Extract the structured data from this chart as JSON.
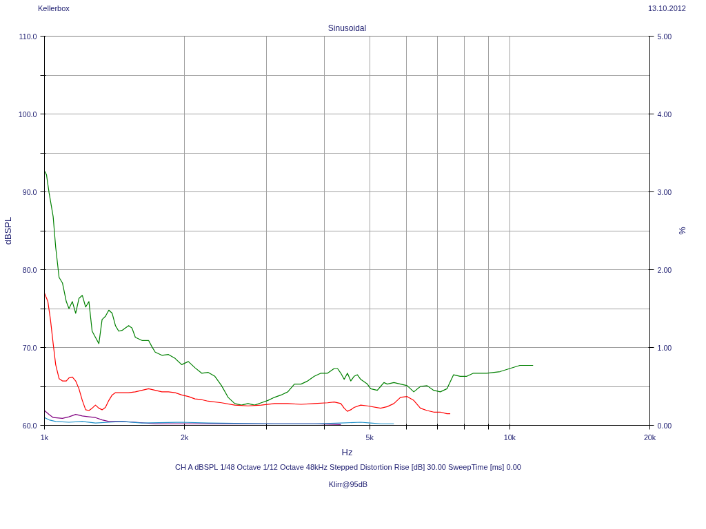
{
  "chart_data": {
    "type": "line",
    "title": "Sinusoidal",
    "xlabel": "Hz",
    "ylabel": "dBSPL",
    "y2label": "%",
    "annotations": [
      "Kellerbox",
      "13.10.2012",
      "CH A   dBSPL   1/48 Octave   1/12 Octave   48kHz   Stepped   Distortion Rise [dB] 30.00   SweepTime [ms] 0.00",
      "Klirr@95dB"
    ],
    "log": "x",
    "grid": true,
    "marker": "none",
    "line_style": "solid",
    "xlim": [
      1000,
      20000
    ],
    "xticks": [
      {
        "value": 1000,
        "label": "1k"
      },
      {
        "value": 2000,
        "label": "2k"
      },
      {
        "value": 3000,
        "label": null
      },
      {
        "value": 4000,
        "label": null
      },
      {
        "value": 5000,
        "label": "5k"
      },
      {
        "value": 6000,
        "label": null
      },
      {
        "value": 7000,
        "label": null
      },
      {
        "value": 8000,
        "label": null
      },
      {
        "value": 9000,
        "label": null
      },
      {
        "value": 10000,
        "label": "10k"
      },
      {
        "value": 20000,
        "label": "20k"
      }
    ],
    "ylim": [
      60,
      110
    ],
    "yticks": [
      {
        "value": 60,
        "label": "60.0"
      },
      {
        "value": 65,
        "label": null
      },
      {
        "value": 70,
        "label": "70.0"
      },
      {
        "value": 75,
        "label": null
      },
      {
        "value": 80,
        "label": "80.0"
      },
      {
        "value": 85,
        "label": null
      },
      {
        "value": 90,
        "label": "90.0"
      },
      {
        "value": 95,
        "label": null
      },
      {
        "value": 100,
        "label": "100.0"
      },
      {
        "value": 105,
        "label": null
      },
      {
        "value": 110,
        "label": "110.0"
      }
    ],
    "y2lim": [
      0,
      5
    ],
    "y2ticks": [
      {
        "value": 0,
        "label": "0.00"
      },
      {
        "value": 1,
        "label": "1.00"
      },
      {
        "value": 2,
        "label": "2.00"
      },
      {
        "value": 3,
        "label": "3.00"
      },
      {
        "value": 4,
        "label": "4.00"
      },
      {
        "value": 5,
        "label": "5.00"
      }
    ],
    "series": [
      {
        "color": "#008000",
        "axis": "y2",
        "x": [
          1000,
          1010,
          1023,
          1044,
          1057,
          1075,
          1093,
          1114,
          1129,
          1148,
          1167,
          1186,
          1206,
          1226,
          1246,
          1266,
          1287,
          1309,
          1330,
          1352,
          1375,
          1398,
          1421,
          1444,
          1468,
          1492,
          1517,
          1542,
          1568,
          1620,
          1674,
          1702,
          1730,
          1788,
          1847,
          1909,
          1972,
          2038,
          2106,
          2177,
          2249,
          2324,
          2402,
          2481,
          2564,
          2650,
          2738,
          2829,
          2924,
          3021,
          3122,
          3226,
          3334,
          3445,
          3560,
          3679,
          3801,
          3928,
          4059,
          4195,
          4264,
          4335,
          4407,
          4479,
          4553,
          4629,
          4705,
          4783,
          4943,
          5024,
          5192,
          5278,
          5365,
          5454,
          5636,
          5824,
          6018,
          6219,
          6427,
          6641,
          6863,
          7092,
          7328,
          7573,
          7825,
          8086,
          8356,
          8923,
          9526,
          10007,
          10513,
          11226
        ],
        "values": [
          3.27,
          3.22,
          2.99,
          2.68,
          2.29,
          1.9,
          1.83,
          1.59,
          1.5,
          1.59,
          1.44,
          1.63,
          1.67,
          1.52,
          1.59,
          1.21,
          1.13,
          1.05,
          1.36,
          1.4,
          1.48,
          1.44,
          1.28,
          1.21,
          1.22,
          1.25,
          1.28,
          1.25,
          1.13,
          1.09,
          1.09,
          1.01,
          0.94,
          0.9,
          0.91,
          0.86,
          0.78,
          0.82,
          0.74,
          0.67,
          0.68,
          0.63,
          0.51,
          0.36,
          0.28,
          0.26,
          0.28,
          0.26,
          0.29,
          0.32,
          0.36,
          0.39,
          0.43,
          0.53,
          0.53,
          0.57,
          0.63,
          0.67,
          0.67,
          0.73,
          0.73,
          0.67,
          0.59,
          0.67,
          0.57,
          0.63,
          0.65,
          0.59,
          0.53,
          0.47,
          0.45,
          0.5,
          0.55,
          0.53,
          0.55,
          0.53,
          0.51,
          0.43,
          0.5,
          0.51,
          0.45,
          0.43,
          0.47,
          0.65,
          0.63,
          0.63,
          0.67,
          0.67,
          0.69,
          0.73,
          0.77,
          0.77
        ]
      },
      {
        "color": "#ff0000",
        "axis": "y2",
        "x": [
          1000,
          1017,
          1030,
          1044,
          1057,
          1075,
          1093,
          1114,
          1129,
          1148,
          1167,
          1186,
          1206,
          1226,
          1246,
          1266,
          1287,
          1309,
          1330,
          1352,
          1375,
          1398,
          1421,
          1468,
          1517,
          1568,
          1620,
          1674,
          1730,
          1788,
          1847,
          1909,
          1972,
          2038,
          2106,
          2177,
          2249,
          2402,
          2564,
          2738,
          2924,
          3122,
          3334,
          3560,
          3801,
          4059,
          4195,
          4335,
          4407,
          4479,
          4553,
          4629,
          4783,
          4943,
          5278,
          5454,
          5636,
          5824,
          6018,
          6219,
          6427,
          6641,
          6863,
          7092,
          7328,
          7449
        ],
        "values": [
          1.7,
          1.59,
          1.36,
          1.05,
          0.78,
          0.6,
          0.57,
          0.57,
          0.61,
          0.62,
          0.57,
          0.47,
          0.32,
          0.2,
          0.19,
          0.22,
          0.26,
          0.22,
          0.2,
          0.23,
          0.32,
          0.39,
          0.42,
          0.42,
          0.42,
          0.43,
          0.45,
          0.47,
          0.45,
          0.43,
          0.43,
          0.42,
          0.39,
          0.37,
          0.34,
          0.33,
          0.31,
          0.29,
          0.26,
          0.25,
          0.26,
          0.28,
          0.28,
          0.27,
          0.28,
          0.29,
          0.3,
          0.28,
          0.22,
          0.18,
          0.2,
          0.23,
          0.26,
          0.25,
          0.22,
          0.24,
          0.28,
          0.36,
          0.37,
          0.32,
          0.22,
          0.19,
          0.17,
          0.17,
          0.15,
          0.15
        ]
      },
      {
        "color": "#800080",
        "axis": "y2",
        "x": [
          1000,
          1023,
          1044,
          1093,
          1129,
          1167,
          1206,
          1246,
          1287,
          1330,
          1375,
          1468,
          1568,
          1730,
          1972,
          2249,
          3122,
          3801,
          4335
        ],
        "values": [
          0.19,
          0.14,
          0.1,
          0.09,
          0.11,
          0.14,
          0.12,
          0.11,
          0.1,
          0.07,
          0.05,
          0.05,
          0.04,
          0.02,
          0.02,
          0.02,
          0.02,
          0.02,
          0.01
        ]
      },
      {
        "color": "#1e90c8",
        "axis": "y2",
        "x": [
          1000,
          1023,
          1057,
          1129,
          1206,
          1287,
          1375,
          1468,
          1620,
          1972,
          2249,
          3122,
          3801,
          4335,
          4783,
          5024,
          5278,
          5636
        ],
        "values": [
          0.1,
          0.07,
          0.05,
          0.04,
          0.05,
          0.03,
          0.04,
          0.05,
          0.03,
          0.04,
          0.03,
          0.02,
          0.02,
          0.03,
          0.04,
          0.03,
          0.02,
          0.02
        ]
      }
    ]
  }
}
